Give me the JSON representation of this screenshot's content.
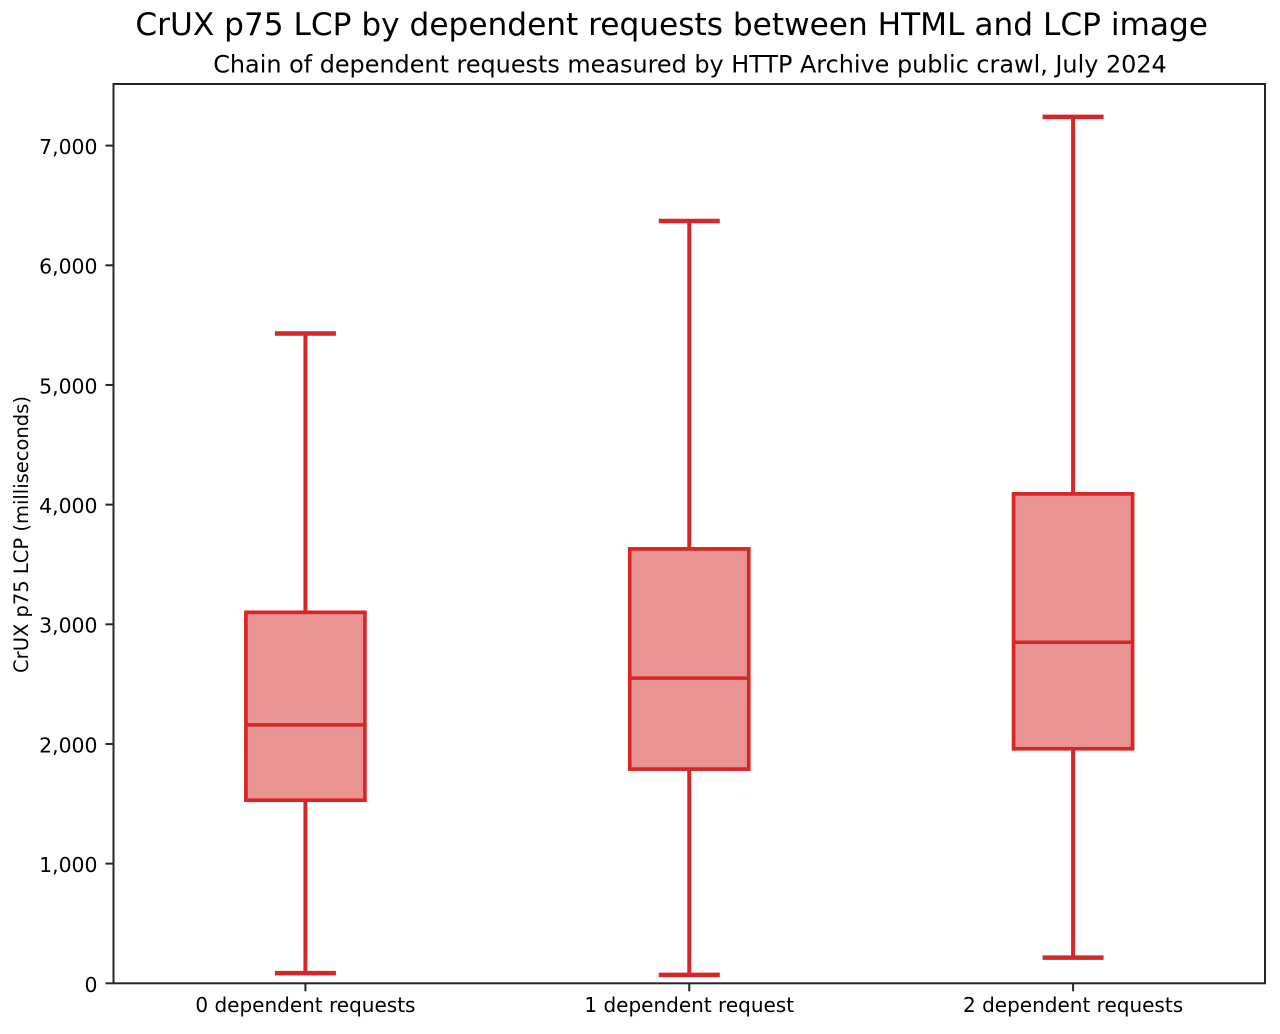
{
  "chart_data": {
    "type": "box",
    "title": "CrUX p75 LCP by dependent requests between HTML and LCP image",
    "subtitle": "Chain of dependent requests measured by HTTP Archive public crawl, July 2024",
    "ylabel": "CrUX p75 LCP (milliseconds)",
    "xlabel": "",
    "categories": [
      "0 dependent requests",
      "1 dependent request",
      "2 dependent requests"
    ],
    "series": [
      {
        "name": "0 dependent requests",
        "whisker_low": 85,
        "q1": 1530,
        "median": 2160,
        "q3": 3100,
        "whisker_high": 5430
      },
      {
        "name": "1 dependent request",
        "whisker_low": 70,
        "q1": 1790,
        "median": 2550,
        "q3": 3630,
        "whisker_high": 6370
      },
      {
        "name": "2 dependent requests",
        "whisker_low": 215,
        "q1": 1960,
        "median": 2850,
        "q3": 4090,
        "whisker_high": 7240
      }
    ],
    "yticks": [
      0,
      1000,
      2000,
      3000,
      4000,
      5000,
      6000,
      7000
    ],
    "ytick_labels": [
      "0",
      "1,000",
      "2,000",
      "3,000",
      "4,000",
      "5,000",
      "6,000",
      "7,000"
    ],
    "ylim": [
      0,
      7515
    ],
    "grid": false,
    "legend_position": "none",
    "colors": {
      "box_edge": "#d62728",
      "box_fill": "#d62728",
      "box_fill_opacity": 0.5,
      "axis": "#262626",
      "text": "#000000"
    }
  }
}
